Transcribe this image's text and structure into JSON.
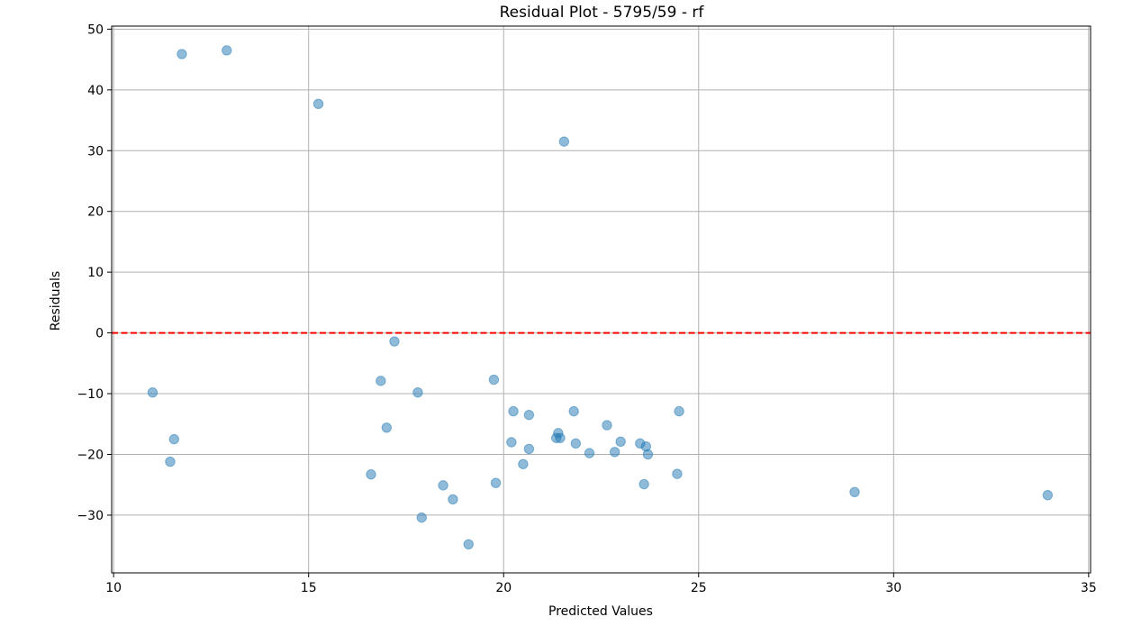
{
  "chart_data": {
    "type": "scatter",
    "title": "Residual Plot - 5795/59 - rf",
    "xlabel": "Predicted Values",
    "ylabel": "Residuals",
    "xlim": [
      9.95,
      35.05
    ],
    "ylim": [
      -39.5,
      50.5
    ],
    "xticks": [
      10,
      15,
      20,
      25,
      30,
      35
    ],
    "yticks": [
      -30,
      -20,
      -10,
      0,
      10,
      20,
      30,
      40,
      50
    ],
    "xtick_labels": [
      "10",
      "15",
      "20",
      "25",
      "30",
      "35"
    ],
    "ytick_labels": [
      "−30",
      "−20",
      "−10",
      "0",
      "10",
      "20",
      "30",
      "40",
      "50"
    ],
    "grid": true,
    "point_color": "#1f77b4",
    "point_alpha": 0.5,
    "reference_line": {
      "y": 0,
      "color": "#ff0000",
      "style": "dashed"
    },
    "points": [
      {
        "x": 11.0,
        "y": -9.8
      },
      {
        "x": 11.45,
        "y": -21.2
      },
      {
        "x": 11.55,
        "y": -17.5
      },
      {
        "x": 11.75,
        "y": 45.9
      },
      {
        "x": 12.9,
        "y": 46.5
      },
      {
        "x": 15.25,
        "y": 37.7
      },
      {
        "x": 16.6,
        "y": -23.3
      },
      {
        "x": 16.85,
        "y": -7.9
      },
      {
        "x": 17.0,
        "y": -15.6
      },
      {
        "x": 17.2,
        "y": -1.4
      },
      {
        "x": 17.8,
        "y": -9.8
      },
      {
        "x": 17.9,
        "y": -30.4
      },
      {
        "x": 18.45,
        "y": -25.1
      },
      {
        "x": 18.7,
        "y": -27.4
      },
      {
        "x": 19.1,
        "y": -34.8
      },
      {
        "x": 19.75,
        "y": -7.7
      },
      {
        "x": 19.8,
        "y": -24.7
      },
      {
        "x": 20.2,
        "y": -18.0
      },
      {
        "x": 20.25,
        "y": -12.9
      },
      {
        "x": 20.5,
        "y": -21.6
      },
      {
        "x": 20.65,
        "y": -19.1
      },
      {
        "x": 20.65,
        "y": -13.5
      },
      {
        "x": 21.35,
        "y": -17.3
      },
      {
        "x": 21.4,
        "y": -16.5
      },
      {
        "x": 21.45,
        "y": -17.3
      },
      {
        "x": 21.55,
        "y": 31.5
      },
      {
        "x": 21.8,
        "y": -12.9
      },
      {
        "x": 21.85,
        "y": -18.2
      },
      {
        "x": 22.2,
        "y": -19.8
      },
      {
        "x": 22.65,
        "y": -15.2
      },
      {
        "x": 22.85,
        "y": -19.6
      },
      {
        "x": 23.0,
        "y": -17.9
      },
      {
        "x": 23.5,
        "y": -18.2
      },
      {
        "x": 23.6,
        "y": -24.9
      },
      {
        "x": 23.65,
        "y": -18.7
      },
      {
        "x": 23.7,
        "y": -20.0
      },
      {
        "x": 24.45,
        "y": -23.2
      },
      {
        "x": 24.5,
        "y": -12.9
      },
      {
        "x": 29.0,
        "y": -26.2
      },
      {
        "x": 33.95,
        "y": -26.7
      }
    ]
  }
}
